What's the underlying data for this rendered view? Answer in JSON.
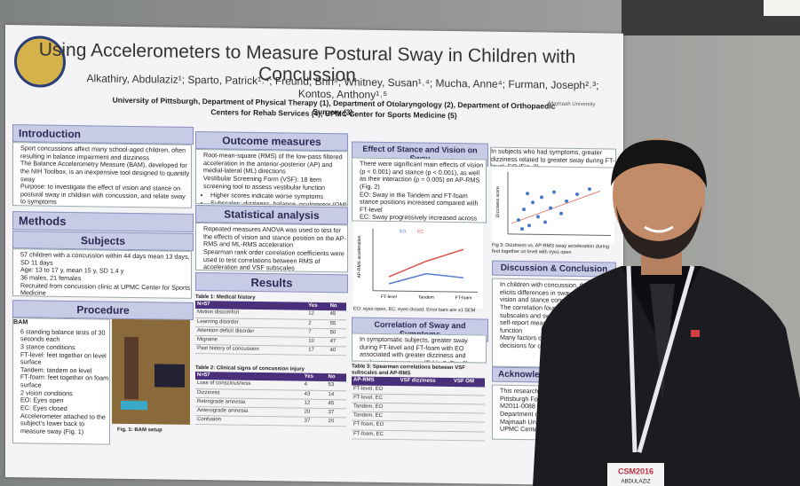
{
  "poster": {
    "title": "Using Accelerometers to Measure Postural Sway in Children with Concussion",
    "authors": "Alkathiry, Abdulaziz¹; Sparto, Patrick¹˒⁴; Freund, Brin⁵; Whitney, Susan¹˒⁴; Mucha, Anne⁴; Furman, Joseph²˒³; Kontos, Anthony¹˒⁵",
    "affiliation": [
      "University of Pittsburgh, Department of Physical Therapy (1), Department of Otolaryngology (2), Department of Orthopaedic Surgery (3),",
      "Centers for Rehab Services (4), UPMC Center for Sports Medicine (5)"
    ],
    "logo_right": "Majmaah University",
    "introduction": {
      "heading": "Introduction",
      "bullets": [
        "Sport concussions affect many school-aged children, often resulting in balance impairment and dizziness",
        "The Balance Accelerometry Measure (BAM), developed for the NIH Toolbox, is an inexpensive tool designed to quantify sway",
        "Purpose: to investigate the effect of vision and stance on postural sway in children with concussion, and relate sway to symptoms"
      ]
    },
    "methods": {
      "heading": "Methods"
    },
    "subjects": {
      "heading": "Subjects",
      "bullets": [
        "57 children with a concussion within 44 days mean 13 days, SD 11 days",
        "Age: 13 to 17 y, mean 15 y, SD 1.4 y",
        "36 males, 21 females",
        "Recruited from concussion clinic at UPMC Center for Sports Medicine"
      ]
    },
    "procedure": {
      "heading": "Procedure",
      "label": "BAM",
      "bullets": [
        "6 standing balance tests of 30 seconds each",
        "3 stance conditions",
        "FT-level: feet together on level surface",
        "Tandem: tandem on level",
        "FT-foam: feet together on foam surface",
        "2 vision conditions",
        "EO: Eyes open",
        "EC: Eyes closed",
        "Accelerometer attached to the subject's lower back to measure sway (Fig. 1)"
      ],
      "figure_caption": "Fig. 1: BAM setup"
    },
    "outcome": {
      "heading": "Outcome measures",
      "bullets": [
        "Root-mean-square (RMS) of the low-pass filtered acceleration in the anterior-posterior (AP) and medial-lateral (ML) directions",
        "Vestibular Screening Form (VSF): 18 item screening tool to assess vestibular function"
      ],
      "sub_bullets": [
        "Higher scores indicate worse symptoms",
        "Subscales: dizziness, balance, oculomotor (OM)"
      ]
    },
    "statistics": {
      "heading": "Statistical analysis",
      "bullets": [
        "Repeated measures ANOVA was used to test for the effects of vision and stance position on the AP-RMS and ML-RMS acceleration",
        "Spearman rank order correlation coefficients were used to test correlations between RMS of acceleration and VSF subscales"
      ]
    },
    "results": {
      "heading": "Results",
      "table1": {
        "caption": "Table 1: Medical history",
        "header": [
          "N=57",
          "Yes",
          "No"
        ],
        "rows": [
          [
            "Motion discomfort",
            "12",
            "45"
          ],
          [
            "Learning disorder",
            "2",
            "55"
          ],
          [
            "Attention deficit disorder",
            "7",
            "50"
          ],
          [
            "Migraine",
            "10",
            "47"
          ],
          [
            "Past history of concussion",
            "17",
            "40"
          ]
        ]
      },
      "table2": {
        "caption": "Table 2: Clinical signs of concussion injury",
        "header": [
          "N=57",
          "Yes",
          "No"
        ],
        "rows": [
          [
            "Loss of consciousness",
            "4",
            "53"
          ],
          [
            "Dizziness",
            "43",
            "14"
          ],
          [
            "Retrograde amnesia",
            "12",
            "45"
          ],
          [
            "Anterograde amnesia",
            "20",
            "37"
          ],
          [
            "Confusion",
            "37",
            "20"
          ]
        ]
      }
    },
    "effect": {
      "heading": "Effect of Stance and Vision on Sway",
      "bullets": [
        "There were significant main effects of vision (p < 0.001) and stance (p < 0.001), as well as their interaction (p = 0.005) on AP-RMS (Fig. 2)",
        "EO: Sway in the Tandem and FT-foam stance positions increased compared with FT-level",
        "EC: Sway progressively increased across conditions",
        "Similar findings observed for ML-RMS"
      ],
      "figure_legend": [
        "EO",
        "EC"
      ],
      "figure_xlabels": [
        "FT-level",
        "Tandem",
        "FT-foam"
      ],
      "figure_ylabel": "AP-RMS acceleration",
      "figure_caption": "EO: eyes open, EC: eyes closed. Error bars are ±1 SEM"
    },
    "correlation": {
      "heading": "Correlation of Sway and Symptoms",
      "bullets": [
        "In symptomatic subjects, greater sway during FT-level and FT-foam with EO associated with greater dizziness and oculomotor symptoms (Table 3, Fig. 3)"
      ],
      "table3": {
        "caption": "Table 3: Spearman correlations between VSF subscales and AP-RMS",
        "header": [
          "AP-RMS",
          "VSF dizziness",
          "VSF OM"
        ],
        "rows": [
          "FT-level, EO",
          "FT-level, EC",
          "Tandem, EO",
          "Tandem, EC",
          "FT-foam, EO",
          "FT-foam, EC"
        ]
      }
    },
    "fig3": {
      "text": "In subjects who had symptoms, greater dizziness related to greater sway during FT-level, EO (Fig. 3)",
      "ylabel": "Dizziness score",
      "caption": "Fig 3: Dizziness vs. AP-RMS sway acceleration during feet together on level with eyes open"
    },
    "discussion": {
      "heading": "Discussion & Conclusion",
      "bullets": [
        "In children with concussion, the BAM elicits differences in sway based on vision and stance conditions",
        "The correlation found between VSF subscales and sway demonstrate that self-report measures of vestibular function",
        "Many factors can be used to make decisions for children who"
      ]
    },
    "acknowledgements": {
      "heading": "Acknowled",
      "bullets": [
        "This research was su",
        "Pittsburgh Founda",
        "M2011-0088",
        "Department of Ph",
        "Majmaah Univer",
        "UPMC Center for"
      ]
    },
    "badge": {
      "event": "CSM2016",
      "name": "ABDULAZIZ"
    }
  }
}
